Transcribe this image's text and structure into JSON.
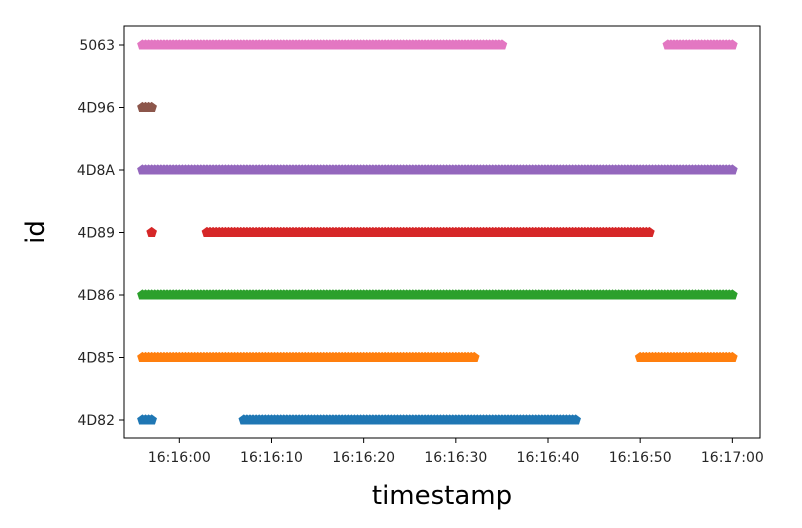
{
  "chart_data": {
    "type": "scatter",
    "title": "",
    "xlabel": "timestamp",
    "ylabel": "id",
    "xlim": [
      "16:15:54",
      "16:17:03"
    ],
    "grid": false,
    "x_ticks": [
      "16:16:00",
      "16:16:10",
      "16:16:20",
      "16:16:30",
      "16:16:40",
      "16:16:50",
      "16:17:00"
    ],
    "categories": [
      "4D82",
      "4D85",
      "4D86",
      "4D89",
      "4D8A",
      "4D96",
      "5063"
    ],
    "marker": "pentagon",
    "series": [
      {
        "category": "4D82",
        "color": "#1f77b4",
        "segments": [
          [
            "16:15:56",
            "16:15:57"
          ],
          [
            "16:16:07",
            "16:16:43"
          ]
        ]
      },
      {
        "category": "4D85",
        "color": "#ff7f0e",
        "segments": [
          [
            "16:15:56",
            "16:16:32"
          ],
          [
            "16:16:50",
            "16:17:00"
          ]
        ]
      },
      {
        "category": "4D86",
        "color": "#2ca02c",
        "segments": [
          [
            "16:15:56",
            "16:17:00"
          ]
        ]
      },
      {
        "category": "4D89",
        "color": "#d62728",
        "segments": [
          [
            "16:15:57",
            "16:15:57"
          ],
          [
            "16:16:03",
            "16:16:51"
          ]
        ]
      },
      {
        "category": "4D8A",
        "color": "#9467bd",
        "segments": [
          [
            "16:15:56",
            "16:17:00"
          ]
        ]
      },
      {
        "category": "4D96",
        "color": "#8c564b",
        "segments": [
          [
            "16:15:56",
            "16:15:57"
          ]
        ]
      },
      {
        "category": "5063",
        "color": "#e377c2",
        "segments": [
          [
            "16:15:56",
            "16:16:35"
          ],
          [
            "16:16:53",
            "16:17:00"
          ]
        ]
      }
    ]
  }
}
